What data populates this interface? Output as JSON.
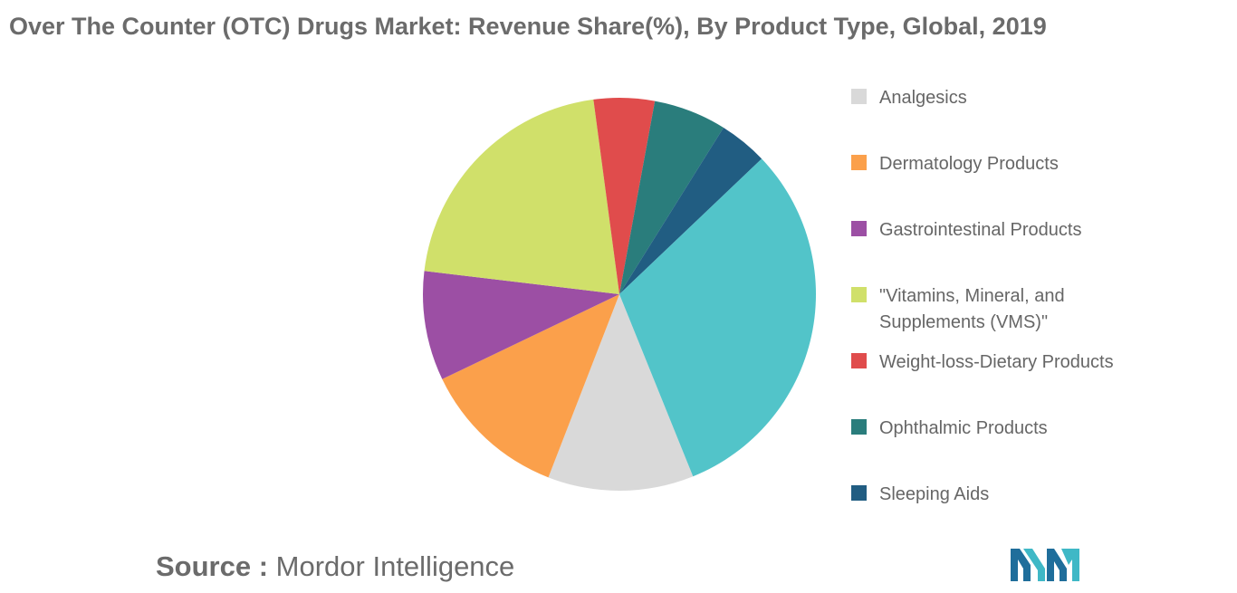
{
  "title": "Over The Counter (OTC) Drugs Market: Revenue Share(%), By Product Type, Global, 2019",
  "source": {
    "key": "Source :",
    "value": "Mordor Intelligence"
  },
  "logo": {
    "name": "mordor-intelligence-logo",
    "colors": [
      "#1f6e9b",
      "#3fb8c6"
    ]
  },
  "chart_data": {
    "type": "pie",
    "title": "Over The Counter (OTC) Drugs Market: Revenue Share(%), By Product Type, Global, 2019",
    "start_angle_deg": 68,
    "slices": [
      {
        "name": "Analgesics",
        "value": 12,
        "color": "#d9d9d9"
      },
      {
        "name": "Dermatology Products",
        "value": 12,
        "color": "#fba04b"
      },
      {
        "name": "Gastrointestinal Products",
        "value": 9,
        "color": "#9c4fa4"
      },
      {
        "name": "\"Vitamins, Mineral, and\nSupplements (VMS)\"",
        "value": 21,
        "color": "#d0e06a"
      },
      {
        "name": "Weight-loss-Dietary Products",
        "value": 5,
        "color": "#e04c4c"
      },
      {
        "name": "Ophthalmic Products",
        "value": 6,
        "color": "#2a7d7c"
      },
      {
        "name": "Sleeping Aids",
        "value": 4,
        "color": "#215d82"
      },
      {
        "name": "",
        "value": 31,
        "color": "#52c4c9"
      }
    ],
    "legend": [
      {
        "label": "Analgesics",
        "color": "#d9d9d9"
      },
      {
        "label": "Dermatology Products",
        "color": "#fba04b"
      },
      {
        "label": "Gastrointestinal Products",
        "color": "#9c4fa4"
      },
      {
        "label": "\"Vitamins, Mineral, and\nSupplements (VMS)\"",
        "color": "#d0e06a"
      },
      {
        "label": "Weight-loss-Dietary Products",
        "color": "#e04c4c"
      },
      {
        "label": "Ophthalmic Products",
        "color": "#2a7d7c"
      },
      {
        "label": "Sleeping Aids",
        "color": "#215d82"
      }
    ],
    "legend_position": "right"
  }
}
